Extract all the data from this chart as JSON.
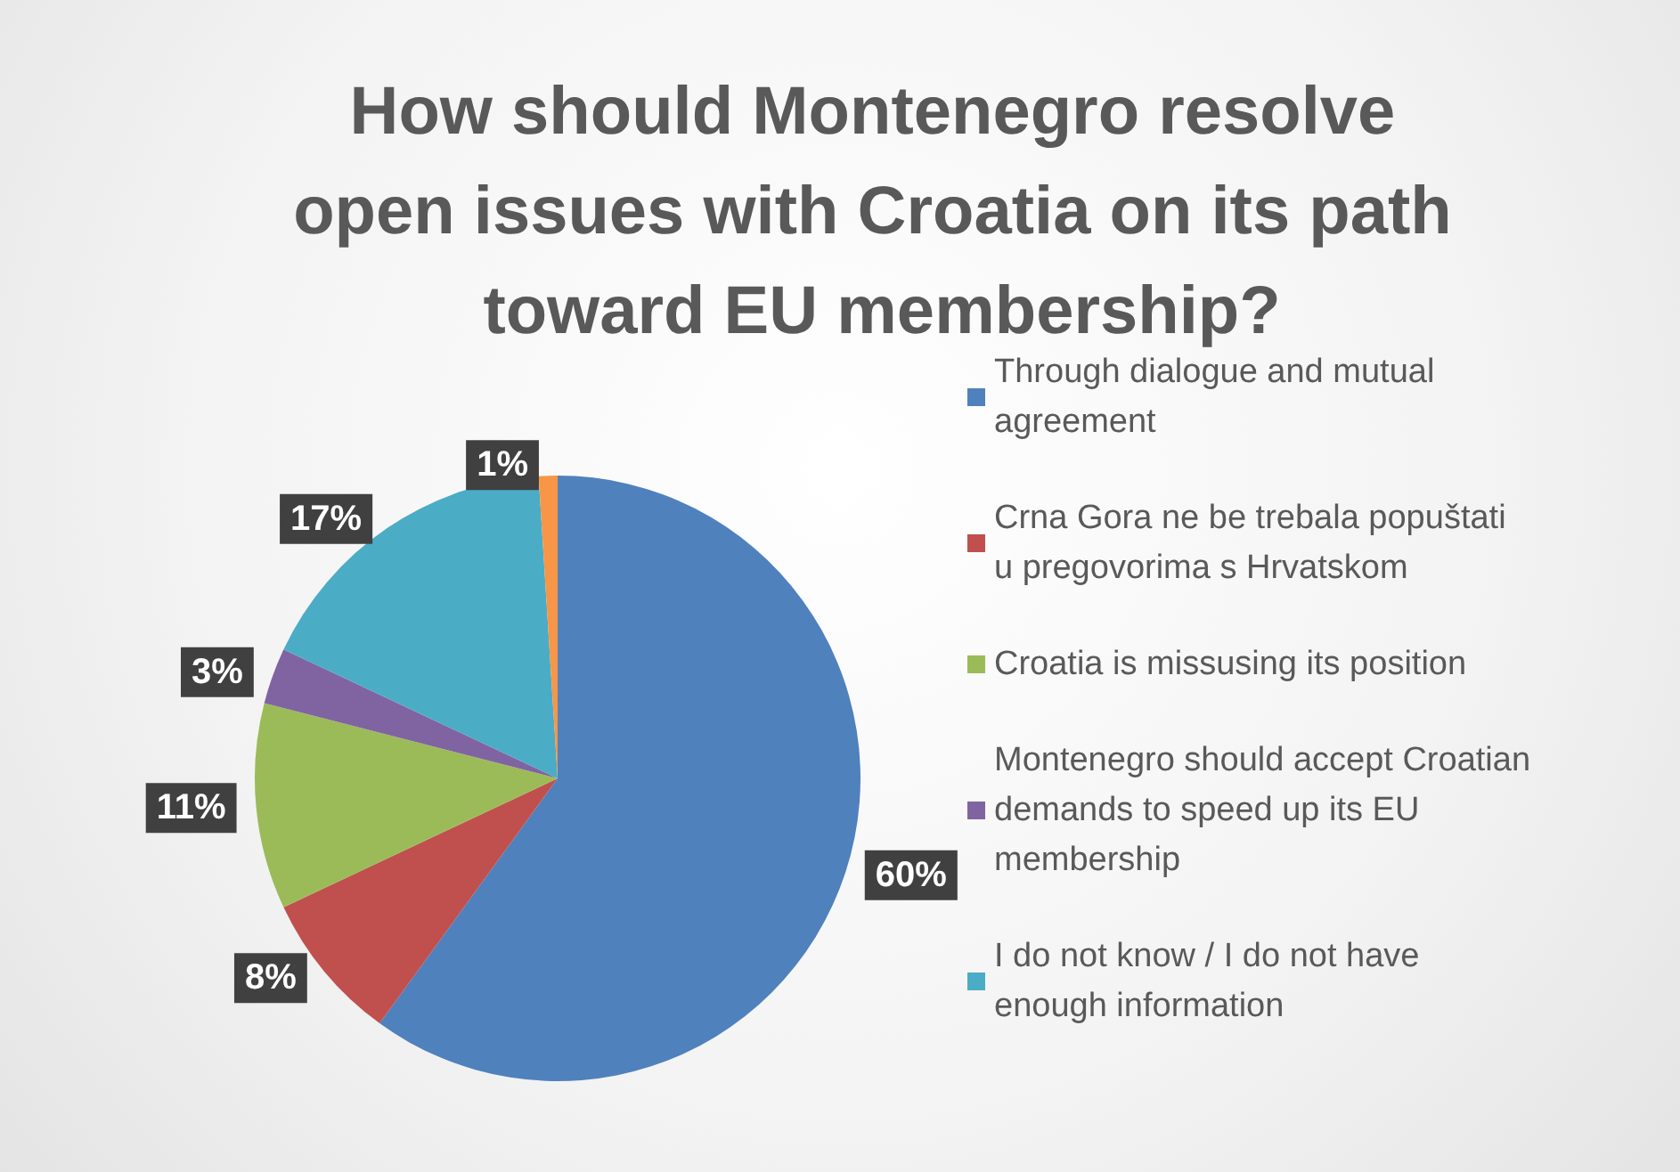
{
  "chart_data": {
    "type": "pie",
    "title": "How should Montenegro resolve open issues with Croatia on its path toward EU membership?",
    "categories": [
      "Through dialogue and mutual agreement",
      "Crna Gora ne be trebala popuštati u pregovorima s Hrvatskom",
      "Croatia is missusing its position",
      "Montenegro should accept Croatian demands to speed up its EU membership",
      "I do not know / I do not have enough information",
      null
    ],
    "values": [
      60,
      8,
      11,
      3,
      17,
      1
    ],
    "colors": [
      "#4f81bd",
      "#c0504d",
      "#9bbb59",
      "#8064a2",
      "#4bacc6",
      "#f79646"
    ],
    "value_labels": [
      "60%",
      "8%",
      "11%",
      "3%",
      "17%",
      "1%"
    ],
    "legend": "right"
  }
}
